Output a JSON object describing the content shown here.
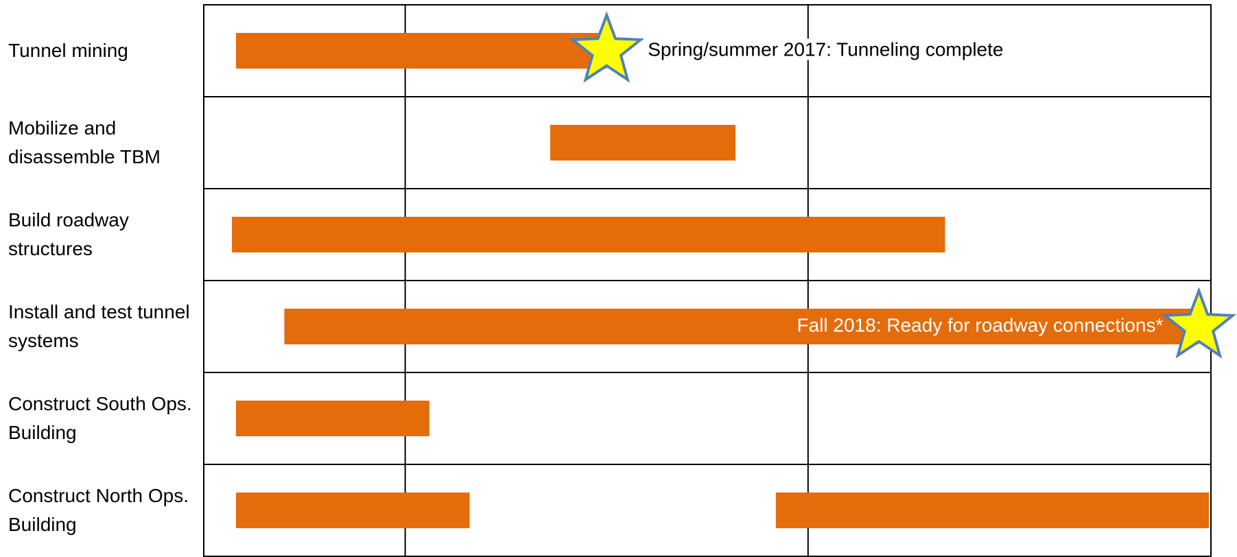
{
  "chart_data": {
    "type": "gantt",
    "xlim": [
      2016.5,
      2019
    ],
    "xticks": [
      2017,
      2018
    ],
    "bar_color": "#e46c0a",
    "star_fill": "#ffff00",
    "star_stroke": "#4f81bd",
    "tasks": [
      {
        "name": "Tunnel mining",
        "bars": [
          [
            2016.58,
            2017.5
          ]
        ],
        "milestone": {
          "x": 2017.5,
          "label": "Spring/summer 2017: Tunneling complete"
        }
      },
      {
        "name": "Mobilize and disassemble TBM",
        "bars": [
          [
            2017.36,
            2017.82
          ]
        ]
      },
      {
        "name": "Build roadway structures",
        "bars": [
          [
            2016.57,
            2018.34
          ]
        ]
      },
      {
        "name": "Install and test tunnel systems",
        "bars": [
          [
            2016.7,
            2018.97
          ]
        ],
        "milestone": {
          "x": 2018.97,
          "label": "Fall 2018: Ready for roadway connections*"
        }
      },
      {
        "name": "Construct South Ops. Building",
        "bars": [
          [
            2016.58,
            2017.06
          ]
        ]
      },
      {
        "name": "Construct North Ops. Building",
        "bars": [
          [
            2016.58,
            2017.16
          ],
          [
            2017.92,
            2018.995
          ]
        ]
      }
    ]
  }
}
